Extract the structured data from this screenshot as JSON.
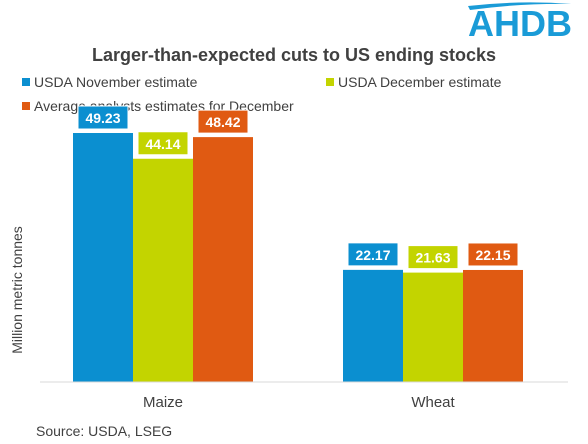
{
  "logo": {
    "text": "AHDB",
    "color": "#1a9bd7"
  },
  "source": "Source: USDA, LSEG",
  "chart_data": {
    "type": "bar",
    "title": "Larger-than-expected cuts to US ending stocks",
    "ylabel": "Million metric tonnes",
    "xlabel": "",
    "categories": [
      "Maize",
      "Wheat"
    ],
    "ylim": [
      0,
      52
    ],
    "grid": false,
    "legend_position": "top",
    "series": [
      {
        "name": "USDA November estimate",
        "color": "#0b8fd0",
        "values": [
          49.23,
          22.17
        ]
      },
      {
        "name": "USDA December estimate",
        "color": "#c3d400",
        "values": [
          44.14,
          21.63
        ]
      },
      {
        "name": "Average analysts estimates for December",
        "color": "#e05a12",
        "values": [
          48.42,
          22.15
        ]
      }
    ]
  }
}
